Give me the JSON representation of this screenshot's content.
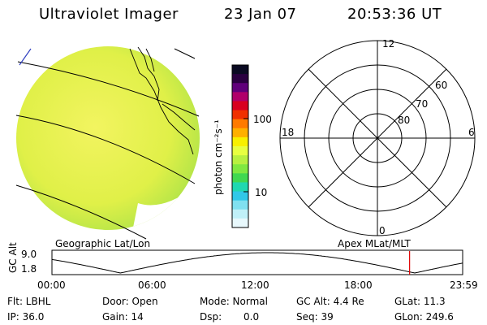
{
  "header": {
    "instrument": "Ultraviolet Imager",
    "date": "23 Jan 07",
    "time": "20:53:36 UT"
  },
  "colorbar": {
    "label": "photon cm⁻²s⁻¹",
    "ticks": [
      "100",
      "10"
    ],
    "colors": [
      "#0a0a22",
      "#2a0040",
      "#60007a",
      "#b0006a",
      "#d80020",
      "#f03000",
      "#ff7a00",
      "#ffb000",
      "#f8f000",
      "#e8ff40",
      "#b8f040",
      "#80e840",
      "#40d850",
      "#20d8b0",
      "#30c8e8",
      "#80e0f0",
      "#c0f0f8",
      "#e8f8fc"
    ]
  },
  "left_map": {
    "caption": "Geographic Lat/Lon",
    "fill": "#e4f050",
    "rim": "#88d848"
  },
  "polar_map": {
    "caption": "Apex MLat/MLT",
    "mlt_labels": [
      "12",
      "18",
      "6",
      "0"
    ],
    "lat_labels": [
      "60",
      "70",
      "80"
    ]
  },
  "orbit": {
    "ylabel": "GC Alt",
    "yticks": [
      "9.0",
      "1.8"
    ],
    "xticks": [
      "00:00",
      "06:00",
      "12:00",
      "18:00",
      "23:59"
    ],
    "marker_hour": 20.9
  },
  "status": {
    "flt": "Flt: LBHL",
    "ip": "IP: 36.0",
    "door": "Door: Open",
    "gain": "Gain: 14",
    "mode": "Mode: Normal",
    "dsp_label": "Dsp:",
    "dsp_value": "0.0",
    "gc_alt": "GC Alt: 4.4 Re",
    "seq": "Seq: 39",
    "glat": "GLat: 11.3",
    "glon": "GLon: 249.6"
  }
}
